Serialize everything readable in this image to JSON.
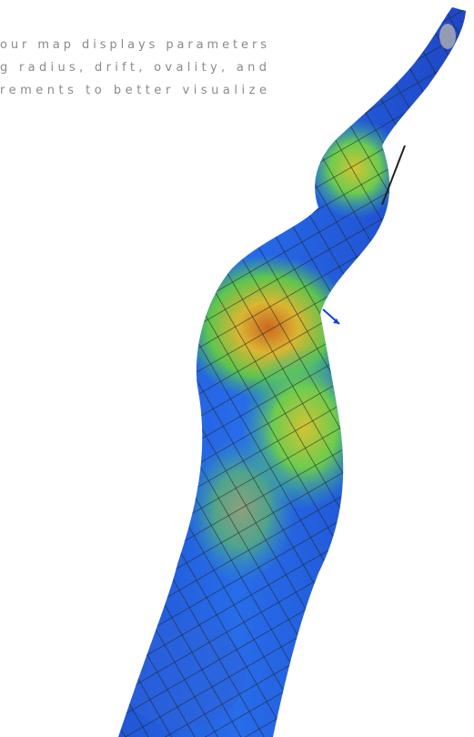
{
  "text": {
    "lines": [
      "our map displays parameters",
      "g radius, drift, ovality, and",
      "rements to better visualize"
    ]
  }
}
